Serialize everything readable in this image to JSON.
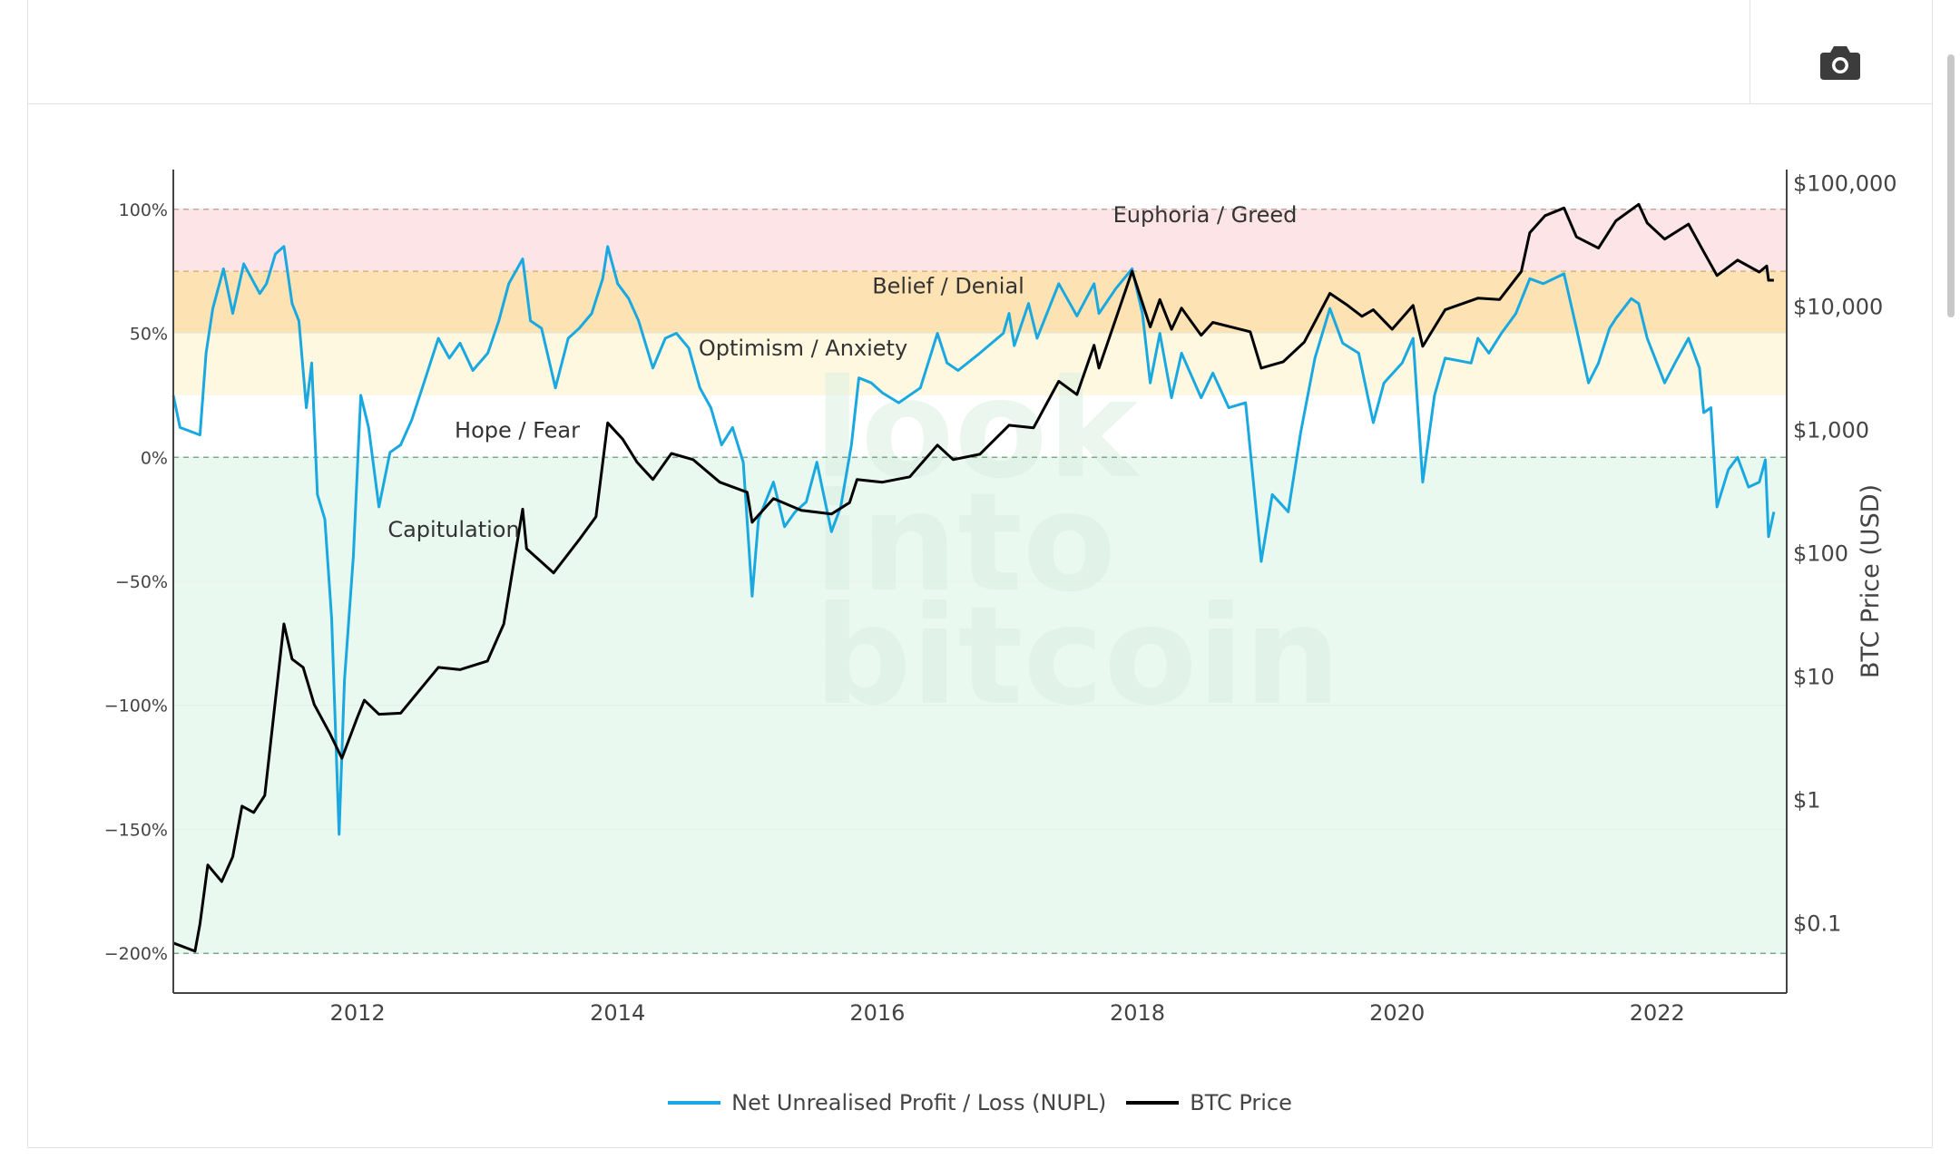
{
  "colors": {
    "nupl": "#1aa8e0",
    "btc_price": "#000000",
    "euphoria_zone": "#fde4e6",
    "belief_zone": "#fde3b4",
    "optimism_zone": "#fef8e1",
    "hope_zone": "#ffffff",
    "capitulation_zone": "#e9f9f0"
  },
  "toolbar": {
    "camera_icon": "camera-icon"
  },
  "watermark": [
    "look",
    "into",
    "bitcoin"
  ],
  "chart_data": {
    "type": "line",
    "x_axis": {
      "type": "date",
      "range": [
        "2010-08-01",
        "2022-12-31"
      ],
      "tick_labels": [
        "2012",
        "2014",
        "2016",
        "2018",
        "2020",
        "2022"
      ]
    },
    "y_axis_left": {
      "range": [
        -216,
        116
      ],
      "tick_values": [
        100,
        50,
        0,
        -50,
        -100,
        -150,
        -200
      ],
      "tick_labels": [
        "100%",
        "50%",
        "0%",
        "−50%",
        "−100%",
        "−150%",
        "−200%"
      ]
    },
    "y_axis_right": {
      "title": "BTC Price (USD)",
      "scale": "log",
      "range": [
        0.0275,
        130000
      ],
      "tick_values": [
        100000,
        10000,
        1000,
        100,
        10,
        1,
        0.1
      ],
      "tick_labels": [
        "$100,000",
        "$10,000",
        "$1,000",
        "$100",
        "$10",
        "$1",
        "$0.1"
      ]
    },
    "zones": [
      {
        "label": "Euphoria / Greed",
        "from": 75,
        "to": 100
      },
      {
        "label": "Belief / Denial",
        "from": 50,
        "to": 75
      },
      {
        "label": "Optimism / Anxiety",
        "from": 25,
        "to": 50
      },
      {
        "label": "Hope / Fear",
        "from": 0,
        "to": 25
      },
      {
        "label": "Capitulation",
        "from": -200,
        "to": 0
      }
    ],
    "reference_lines": [
      100,
      75,
      0,
      -200
    ],
    "legend": [
      "Net Unrealised Profit / Loss (NUPL)",
      "BTC Price"
    ],
    "legend_position": "bottom-center",
    "series": [
      {
        "name": "Net Unrealised Profit / Loss (NUPL)",
        "axis": "left",
        "points": [
          [
            "2010-08-01",
            25
          ],
          [
            "2010-08-20",
            12
          ],
          [
            "2010-10-15",
            9
          ],
          [
            "2010-11-01",
            42
          ],
          [
            "2010-11-20",
            60
          ],
          [
            "2010-12-20",
            76
          ],
          [
            "2011-01-15",
            58
          ],
          [
            "2011-02-15",
            78
          ],
          [
            "2011-04-01",
            66
          ],
          [
            "2011-04-20",
            70
          ],
          [
            "2011-05-15",
            82
          ],
          [
            "2011-06-08",
            85
          ],
          [
            "2011-07-01",
            62
          ],
          [
            "2011-07-20",
            55
          ],
          [
            "2011-08-10",
            20
          ],
          [
            "2011-08-25",
            38
          ],
          [
            "2011-09-10",
            -15
          ],
          [
            "2011-10-01",
            -25
          ],
          [
            "2011-10-20",
            -65
          ],
          [
            "2011-11-10",
            -152
          ],
          [
            "2011-11-25",
            -90
          ],
          [
            "2011-12-20",
            -40
          ],
          [
            "2012-01-10",
            25
          ],
          [
            "2012-02-01",
            12
          ],
          [
            "2012-03-01",
            -20
          ],
          [
            "2012-04-01",
            2
          ],
          [
            "2012-05-01",
            5
          ],
          [
            "2012-06-01",
            15
          ],
          [
            "2012-07-01",
            28
          ],
          [
            "2012-08-15",
            48
          ],
          [
            "2012-09-15",
            40
          ],
          [
            "2012-10-15",
            46
          ],
          [
            "2012-11-20",
            35
          ],
          [
            "2013-01-01",
            42
          ],
          [
            "2013-02-01",
            55
          ],
          [
            "2013-03-01",
            70
          ],
          [
            "2013-04-09",
            80
          ],
          [
            "2013-05-01",
            55
          ],
          [
            "2013-06-01",
            52
          ],
          [
            "2013-07-10",
            28
          ],
          [
            "2013-08-15",
            48
          ],
          [
            "2013-09-15",
            52
          ],
          [
            "2013-10-20",
            58
          ],
          [
            "2013-11-20",
            72
          ],
          [
            "2013-12-04",
            85
          ],
          [
            "2014-01-01",
            70
          ],
          [
            "2014-02-01",
            64
          ],
          [
            "2014-03-01",
            55
          ],
          [
            "2014-04-10",
            36
          ],
          [
            "2014-05-15",
            48
          ],
          [
            "2014-06-15",
            50
          ],
          [
            "2014-07-20",
            44
          ],
          [
            "2014-08-20",
            28
          ],
          [
            "2014-09-20",
            20
          ],
          [
            "2014-10-20",
            5
          ],
          [
            "2014-11-20",
            12
          ],
          [
            "2014-12-20",
            -2
          ],
          [
            "2015-01-14",
            -56
          ],
          [
            "2015-02-01",
            -25
          ],
          [
            "2015-03-15",
            -10
          ],
          [
            "2015-04-15",
            -28
          ],
          [
            "2015-05-15",
            -22
          ],
          [
            "2015-06-15",
            -18
          ],
          [
            "2015-07-15",
            -2
          ],
          [
            "2015-08-25",
            -30
          ],
          [
            "2015-09-20",
            -20
          ],
          [
            "2015-10-20",
            5
          ],
          [
            "2015-11-10",
            32
          ],
          [
            "2015-12-15",
            30
          ],
          [
            "2016-01-15",
            26
          ],
          [
            "2016-03-01",
            22
          ],
          [
            "2016-05-01",
            28
          ],
          [
            "2016-06-18",
            50
          ],
          [
            "2016-07-15",
            38
          ],
          [
            "2016-08-15",
            35
          ],
          [
            "2016-10-15",
            42
          ],
          [
            "2016-12-20",
            50
          ],
          [
            "2017-01-05",
            58
          ],
          [
            "2017-01-20",
            45
          ],
          [
            "2017-03-01",
            62
          ],
          [
            "2017-03-25",
            48
          ],
          [
            "2017-05-25",
            70
          ],
          [
            "2017-07-15",
            57
          ],
          [
            "2017-09-01",
            70
          ],
          [
            "2017-09-15",
            58
          ],
          [
            "2017-11-01",
            68
          ],
          [
            "2017-12-17",
            76
          ],
          [
            "2018-01-15",
            58
          ],
          [
            "2018-02-06",
            30
          ],
          [
            "2018-03-05",
            50
          ],
          [
            "2018-04-07",
            24
          ],
          [
            "2018-05-05",
            42
          ],
          [
            "2018-06-29",
            24
          ],
          [
            "2018-08-01",
            34
          ],
          [
            "2018-09-15",
            20
          ],
          [
            "2018-11-01",
            22
          ],
          [
            "2018-12-15",
            -42
          ],
          [
            "2019-01-15",
            -15
          ],
          [
            "2019-03-01",
            -22
          ],
          [
            "2019-04-05",
            10
          ],
          [
            "2019-05-15",
            40
          ],
          [
            "2019-06-26",
            60
          ],
          [
            "2019-08-01",
            46
          ],
          [
            "2019-09-15",
            42
          ],
          [
            "2019-10-26",
            14
          ],
          [
            "2019-11-25",
            30
          ],
          [
            "2020-01-15",
            38
          ],
          [
            "2020-02-15",
            48
          ],
          [
            "2020-03-13",
            -10
          ],
          [
            "2020-04-15",
            25
          ],
          [
            "2020-05-15",
            40
          ],
          [
            "2020-07-27",
            38
          ],
          [
            "2020-08-15",
            48
          ],
          [
            "2020-09-15",
            42
          ],
          [
            "2020-10-20",
            50
          ],
          [
            "2020-11-30",
            58
          ],
          [
            "2021-01-08",
            72
          ],
          [
            "2021-02-15",
            70
          ],
          [
            "2021-04-14",
            74
          ],
          [
            "2021-05-19",
            52
          ],
          [
            "2021-06-22",
            30
          ],
          [
            "2021-07-20",
            38
          ],
          [
            "2021-08-20",
            52
          ],
          [
            "2021-09-07",
            56
          ],
          [
            "2021-10-20",
            64
          ],
          [
            "2021-11-10",
            62
          ],
          [
            "2021-12-04",
            48
          ],
          [
            "2022-01-22",
            30
          ],
          [
            "2022-02-20",
            38
          ],
          [
            "2022-03-30",
            48
          ],
          [
            "2022-04-30",
            36
          ],
          [
            "2022-05-12",
            18
          ],
          [
            "2022-06-01",
            20
          ],
          [
            "2022-06-18",
            -20
          ],
          [
            "2022-07-20",
            -5
          ],
          [
            "2022-08-15",
            0
          ],
          [
            "2022-09-15",
            -12
          ],
          [
            "2022-10-15",
            -10
          ],
          [
            "2022-11-01",
            -1
          ],
          [
            "2022-11-10",
            -32
          ],
          [
            "2022-11-25",
            -22
          ]
        ]
      },
      {
        "name": "BTC Price",
        "axis": "right",
        "points": [
          [
            "2010-08-01",
            0.07
          ],
          [
            "2010-10-01",
            0.06
          ],
          [
            "2010-10-15",
            0.1
          ],
          [
            "2010-11-06",
            0.3
          ],
          [
            "2010-12-15",
            0.22
          ],
          [
            "2011-01-15",
            0.35
          ],
          [
            "2011-02-10",
            0.9
          ],
          [
            "2011-03-15",
            0.8
          ],
          [
            "2011-04-15",
            1.1
          ],
          [
            "2011-05-15",
            6.5
          ],
          [
            "2011-06-08",
            27
          ],
          [
            "2011-07-01",
            14
          ],
          [
            "2011-08-01",
            12
          ],
          [
            "2011-09-01",
            6
          ],
          [
            "2011-10-15",
            3.5
          ],
          [
            "2011-11-18",
            2.2
          ],
          [
            "2011-12-31",
            4.7
          ],
          [
            "2012-01-20",
            6.5
          ],
          [
            "2012-03-01",
            5
          ],
          [
            "2012-05-01",
            5.1
          ],
          [
            "2012-08-15",
            12
          ],
          [
            "2012-10-15",
            11.5
          ],
          [
            "2012-12-31",
            13.5
          ],
          [
            "2013-02-15",
            27
          ],
          [
            "2013-04-09",
            230
          ],
          [
            "2013-04-20",
            110
          ],
          [
            "2013-07-05",
            70
          ],
          [
            "2013-09-15",
            130
          ],
          [
            "2013-11-01",
            200
          ],
          [
            "2013-12-04",
            1150
          ],
          [
            "2014-01-15",
            850
          ],
          [
            "2014-02-25",
            550
          ],
          [
            "2014-04-10",
            400
          ],
          [
            "2014-06-01",
            650
          ],
          [
            "2014-08-01",
            580
          ],
          [
            "2014-10-15",
            380
          ],
          [
            "2014-12-31",
            315
          ],
          [
            "2015-01-14",
            180
          ],
          [
            "2015-03-15",
            280
          ],
          [
            "2015-06-01",
            225
          ],
          [
            "2015-08-25",
            210
          ],
          [
            "2015-10-15",
            260
          ],
          [
            "2015-11-05",
            400
          ],
          [
            "2016-01-15",
            380
          ],
          [
            "2016-04-01",
            420
          ],
          [
            "2016-06-18",
            760
          ],
          [
            "2016-08-01",
            580
          ],
          [
            "2016-10-15",
            640
          ],
          [
            "2017-01-05",
            1100
          ],
          [
            "2017-03-15",
            1050
          ],
          [
            "2017-05-25",
            2500
          ],
          [
            "2017-07-15",
            1950
          ],
          [
            "2017-09-01",
            4900
          ],
          [
            "2017-09-15",
            3200
          ],
          [
            "2017-12-17",
            19500
          ],
          [
            "2018-02-06",
            6900
          ],
          [
            "2018-03-05",
            11500
          ],
          [
            "2018-04-07",
            6600
          ],
          [
            "2018-05-05",
            9800
          ],
          [
            "2018-06-29",
            5900
          ],
          [
            "2018-08-01",
            7500
          ],
          [
            "2018-11-14",
            6300
          ],
          [
            "2018-12-15",
            3200
          ],
          [
            "2019-02-15",
            3600
          ],
          [
            "2019-04-15",
            5200
          ],
          [
            "2019-06-26",
            12900
          ],
          [
            "2019-08-15",
            10300
          ],
          [
            "2019-09-24",
            8400
          ],
          [
            "2019-10-26",
            9500
          ],
          [
            "2019-12-18",
            6600
          ],
          [
            "2020-02-15",
            10300
          ],
          [
            "2020-03-13",
            4800
          ],
          [
            "2020-05-15",
            9500
          ],
          [
            "2020-08-15",
            11800
          ],
          [
            "2020-10-15",
            11500
          ],
          [
            "2020-12-15",
            19400
          ],
          [
            "2021-01-08",
            40000
          ],
          [
            "2021-02-20",
            55000
          ],
          [
            "2021-04-14",
            63500
          ],
          [
            "2021-05-19",
            37000
          ],
          [
            "2021-07-20",
            30000
          ],
          [
            "2021-09-07",
            50000
          ],
          [
            "2021-11-10",
            68000
          ],
          [
            "2021-12-04",
            48000
          ],
          [
            "2022-01-22",
            35500
          ],
          [
            "2022-03-30",
            47000
          ],
          [
            "2022-05-12",
            28000
          ],
          [
            "2022-06-18",
            18000
          ],
          [
            "2022-08-15",
            24000
          ],
          [
            "2022-10-15",
            19200
          ],
          [
            "2022-11-05",
            21500
          ],
          [
            "2022-11-10",
            16500
          ],
          [
            "2022-11-25",
            16500
          ]
        ]
      }
    ]
  }
}
